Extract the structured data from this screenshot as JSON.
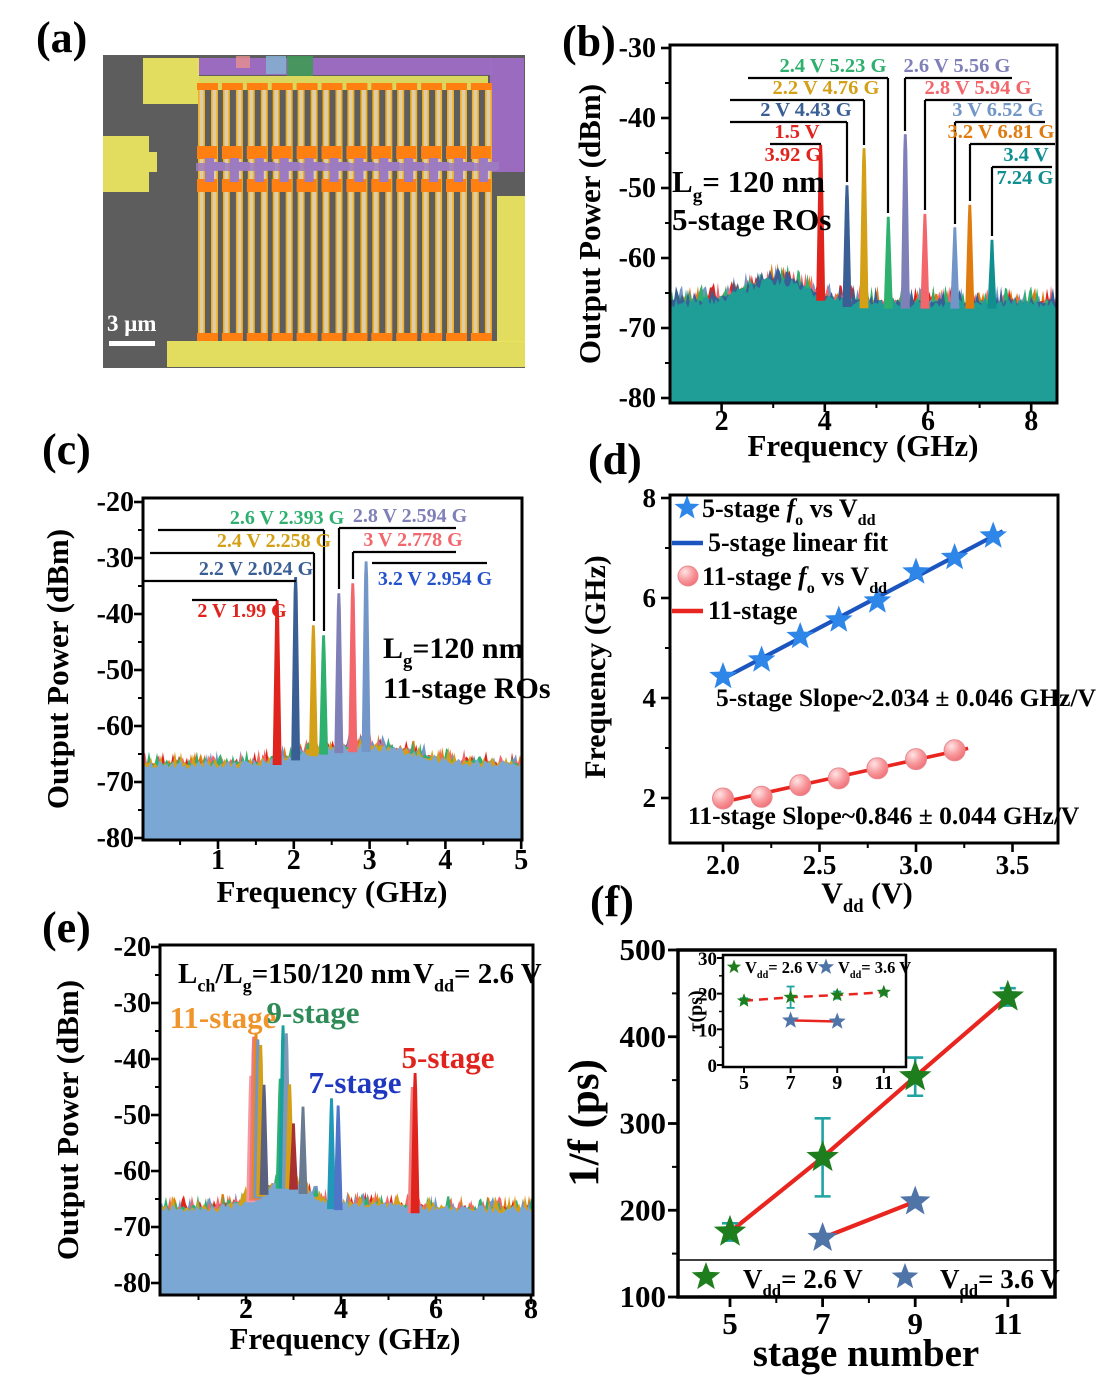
{
  "panels": {
    "a": {
      "label": "(a)",
      "scalebar": "3 μm"
    },
    "b": {
      "label": "(b)"
    },
    "c": {
      "label": "(c)"
    },
    "d": {
      "label": "(d)"
    },
    "e": {
      "label": "(e)"
    },
    "f": {
      "label": "(f)"
    }
  },
  "micrograph": {
    "background": "#5d5d5d",
    "pad_yellow": "#e9e45e",
    "finger_yellow": "#f2b01c",
    "finger_core": "#d9d2c4",
    "contact_orange": "#ff8010",
    "gate_purple": "#9d7bc0",
    "band_purple": "#a06cc8",
    "patch_blue": "#86aed0",
    "patch_green": "#3f9a55",
    "scalebar_color": "#ffffff",
    "columns": 12
  },
  "chart_data": [
    {
      "panel": "b",
      "type": "area",
      "title": "",
      "xlabel": "Frequency (GHz)",
      "ylabel": "Output Power (dBm)",
      "xlim": [
        1,
        8.5
      ],
      "ylim": [
        -80,
        -30
      ],
      "xticks": [
        "2",
        "4",
        "6",
        "8"
      ],
      "yticks": [
        "-30",
        "-40",
        "-50",
        "-60",
        "-70",
        "-80"
      ],
      "noise_color": "#1f9e97",
      "noise_floor_dbm": -67,
      "device_lines": [
        "L_{g}= 120 nm",
        "5-stage ROs"
      ],
      "peaks": [
        {
          "vdd": "1.5 V",
          "freq": 3.92,
          "power": -43.8,
          "color": "#e0231c"
        },
        {
          "vdd": "2 V",
          "freq": 4.43,
          "power": -49.6,
          "color": "#3a5f95"
        },
        {
          "vdd": "2.2 V",
          "freq": 4.76,
          "power": -44.3,
          "color": "#d4a017"
        },
        {
          "vdd": "2.4 V",
          "freq": 5.23,
          "power": -54.1,
          "color": "#2eb06e"
        },
        {
          "vdd": "2.6 V",
          "freq": 5.56,
          "power": -42.3,
          "color": "#8080b8"
        },
        {
          "vdd": "2.8 V",
          "freq": 5.94,
          "power": -53.7,
          "color": "#f2666c"
        },
        {
          "vdd": "3 V",
          "freq": 6.52,
          "power": -55.6,
          "color": "#7396c8"
        },
        {
          "vdd": "3.2 V",
          "freq": 6.81,
          "power": -52.4,
          "color": "#e07b10"
        },
        {
          "vdd": "3.4 V",
          "freq": 7.24,
          "power": -57.4,
          "color": "#0f8f8f"
        }
      ],
      "annotations": [
        {
          "text": "2.4 V 5.23 G",
          "color": "#2eb06e"
        },
        {
          "text": "2.6 V 5.56 G",
          "color": "#8080b8"
        },
        {
          "text": "2.2 V 4.76 G",
          "color": "#d4a017"
        },
        {
          "text": "2.8 V 5.94 G",
          "color": "#f2666c"
        },
        {
          "text": "2 V 4.43 G",
          "color": "#3a5f95"
        },
        {
          "text": "3 V 6.52 G",
          "color": "#7396c8"
        },
        {
          "text": "1.5 V",
          "color": "#e0231c"
        },
        {
          "text": "3.2 V 6.81 G",
          "color": "#e07b10"
        },
        {
          "text": "3.92 G",
          "color": "#e0231c"
        },
        {
          "text": "3.4 V",
          "color": "#0f8f8f"
        },
        {
          "text": "7.24 G",
          "color": "#0f8f8f"
        }
      ]
    },
    {
      "panel": "c",
      "type": "area",
      "title": "",
      "xlabel": "Frequency (GHz)",
      "ylabel": "Output Power (dBm)",
      "xlim": [
        0,
        5
      ],
      "ylim": [
        -80,
        -20
      ],
      "xticks": [
        "1",
        "2",
        "3",
        "4",
        "5"
      ],
      "yticks": [
        "-20",
        "-30",
        "-40",
        "-50",
        "-60",
        "-70",
        "-80"
      ],
      "noise_color": "#7ba7d4",
      "noise_floor_dbm": -67,
      "device_lines": [
        "L_{g}=120 nm",
        "11-stage ROs"
      ],
      "peaks": [
        {
          "vdd": "2 V",
          "freq": 1.99,
          "plot_freq": 1.78,
          "power": -37.5,
          "color": "#e0231c"
        },
        {
          "vdd": "2.2 V",
          "freq": 2.024,
          "power": -33.4,
          "color": "#3a5f95"
        },
        {
          "vdd": "2.4 V",
          "freq": 2.258,
          "power": -42.0,
          "color": "#d4a017"
        },
        {
          "vdd": "2.6 V",
          "freq": 2.393,
          "power": -43.8,
          "color": "#2eb06e"
        },
        {
          "vdd": "2.8 V",
          "freq": 2.594,
          "power": -36.3,
          "color": "#8080b8"
        },
        {
          "vdd": "3 V",
          "freq": 2.778,
          "power": -34.5,
          "color": "#f2666c"
        },
        {
          "vdd": "3.2 V",
          "freq": 2.954,
          "power": -30.6,
          "color": "#7396c8"
        }
      ],
      "annotations": [
        {
          "text": "2.6 V 2.393 G",
          "color": "#2eb06e"
        },
        {
          "text": "2.8 V 2.594 G",
          "color": "#8080b8"
        },
        {
          "text": "2.4 V 2.258 G",
          "color": "#d4a017"
        },
        {
          "text": "3 V 2.778 G",
          "color": "#f2666c"
        },
        {
          "text": "2.2 V 2.024 G",
          "color": "#3a5f95"
        },
        {
          "text": "3.2 V 2.954 G",
          "color": "#2352cc"
        },
        {
          "text": "2 V 1.99 G",
          "color": "#e0231c"
        }
      ]
    },
    {
      "panel": "d",
      "type": "scatter",
      "title": "",
      "xlabel": "V_{dd} (V)",
      "ylabel": "Frequency (GHz)",
      "xlim": [
        1.72,
        3.75
      ],
      "ylim": [
        1.1,
        8.1
      ],
      "xticks": [
        "2.0",
        "2.5",
        "3.0",
        "3.5"
      ],
      "yticks": [
        "2",
        "4",
        "6",
        "8"
      ],
      "legend_position": "upper-left",
      "series": [
        {
          "name": "5-stage *f*_{o} vs V_{dd}",
          "marker": "star",
          "color": "#2e86e8",
          "x": [
            2.0,
            2.2,
            2.4,
            2.6,
            2.8,
            3.0,
            3.2,
            3.4
          ],
          "y": [
            4.43,
            4.76,
            5.23,
            5.56,
            5.94,
            6.52,
            6.81,
            7.24
          ]
        },
        {
          "name": "5-stage linear fit",
          "marker": "line",
          "color": "#1b55c0",
          "slope": 2.034,
          "intercept": 0.319,
          "xrange": [
            1.97,
            3.45
          ]
        },
        {
          "name": "11-stage *f*_{o} vs V_{dd}",
          "marker": "sphere",
          "color": "#f7989e",
          "x": [
            2.0,
            2.2,
            2.4,
            2.6,
            2.8,
            3.0,
            3.2
          ],
          "y": [
            1.99,
            2.024,
            2.258,
            2.393,
            2.594,
            2.778,
            2.954
          ]
        },
        {
          "name": "11-stage",
          "marker": "line",
          "color": "#e8251f",
          "slope": 0.846,
          "intercept": 0.227,
          "xrange": [
            1.98,
            3.27
          ]
        }
      ],
      "annotations": [
        {
          "text": "5-stage  Slope~2.034 ± 0.046 GHz/V"
        },
        {
          "text": "11-stage  Slope~0.846 ± 0.044 GHz/V"
        }
      ]
    },
    {
      "panel": "e",
      "type": "area",
      "title": "",
      "xlabel": "Frequency (GHz)",
      "ylabel": "Output Power (dBm)",
      "xlim": [
        0.2,
        8
      ],
      "ylim": [
        -80,
        -20
      ],
      "xticks": [
        "2",
        "4",
        "6",
        "8"
      ],
      "yticks": [
        "-20",
        "-30",
        "-40",
        "-50",
        "-60",
        "-70",
        "-80"
      ],
      "noise_color": "#7ba7d4",
      "noise_floor_dbm": -67,
      "header": [
        "L_{ch}/L_{g}=150/120 nm",
        "V_{dd}= 2.6 V"
      ],
      "stage_labels": [
        {
          "text": "11-stage",
          "color": "#f0942c"
        },
        {
          "text": "9-stage",
          "color": "#2e8b57"
        },
        {
          "text": "7-stage",
          "color": "#2038c0"
        },
        {
          "text": "5-stage",
          "color": "#e0231c"
        }
      ],
      "peaks": [
        {
          "freq": 2.1,
          "power": -43.0,
          "color": "#f49aa0"
        },
        {
          "freq": 2.16,
          "power": -36.0,
          "color": "#f07880"
        },
        {
          "freq": 2.21,
          "power": -35.3,
          "color": "#e8871a"
        },
        {
          "freq": 2.25,
          "power": -36.5,
          "color": "#7396c8"
        },
        {
          "freq": 2.31,
          "power": -37.5,
          "color": "#d4a017"
        },
        {
          "freq": 2.38,
          "power": -44.6,
          "color": "#5a6080"
        },
        {
          "freq": 2.72,
          "power": -43.5,
          "color": "#2eb06e"
        },
        {
          "freq": 2.78,
          "power": -34.0,
          "color": "#16a0a0"
        },
        {
          "freq": 2.85,
          "power": -35.4,
          "color": "#8098b8"
        },
        {
          "freq": 2.92,
          "power": -44.5,
          "color": "#d4a017"
        },
        {
          "freq": 3.0,
          "power": -51.5,
          "color": "#a83030"
        },
        {
          "freq": 3.2,
          "power": -48.5,
          "color": "#6a7a90"
        },
        {
          "freq": 3.8,
          "power": -47.0,
          "color": "#2098b8"
        },
        {
          "freq": 3.94,
          "power": -48.3,
          "color": "#4f74c8"
        },
        {
          "freq": 5.5,
          "power": -45.0,
          "color": "#f08080"
        },
        {
          "freq": 5.56,
          "power": -42.5,
          "color": "#e0231c"
        }
      ]
    },
    {
      "panel": "f",
      "type": "scatter",
      "title": "",
      "xlabel": "stage number",
      "ylabel": "1/f (ps)",
      "xlim": [
        3.9,
        12
      ],
      "ylim": [
        100,
        500
      ],
      "xticks": [
        "5",
        "7",
        "9",
        "11"
      ],
      "yticks": [
        "100",
        "200",
        "300",
        "400",
        "500"
      ],
      "line_color": "#e8251f",
      "errorbar_color": "#1fa3a3",
      "legend_position": "bottom",
      "series": [
        {
          "name": "V_{dd}= 2.6 V",
          "color": "#1e7e1e",
          "x": [
            5,
            7,
            9,
            11
          ],
          "y": [
            175,
            261,
            354,
            446
          ],
          "yerr": [
            10,
            45,
            22,
            10
          ]
        },
        {
          "name": "V_{dd}= 3.6 V",
          "color": "#4f74a8",
          "x": [
            7,
            9
          ],
          "y": [
            168,
            210
          ]
        }
      ],
      "inset": {
        "ylabel": "τ(ps)",
        "xlim": [
          4.1,
          12
        ],
        "ylim": [
          0,
          30
        ],
        "xticks": [
          "5",
          "7",
          "9",
          "11"
        ],
        "yticks": [
          "0",
          "10",
          "20",
          "30"
        ],
        "series": [
          {
            "name": "V_{dd}= 2.6 V",
            "color": "#1e7e1e",
            "line": "dashed",
            "x": [
              5,
              7,
              9,
              11
            ],
            "y": [
              18,
              19,
              19.6,
              20.4
            ],
            "yerr": [
              0.7,
              3,
              1,
              0.5
            ]
          },
          {
            "name": "V_{dd}= 3.6 V",
            "color": "#4f74a8",
            "line": "solid",
            "x": [
              7,
              9
            ],
            "y": [
              12.5,
              12.2
            ]
          }
        ]
      }
    }
  ]
}
